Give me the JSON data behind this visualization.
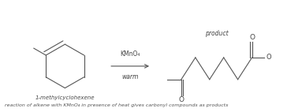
{
  "background_color": "#ffffff",
  "figure_width": 3.83,
  "figure_height": 1.42,
  "dpi": 100,
  "reactant_label": "1-methylcyclohexene",
  "reagent_line1": "KMnO₄",
  "reagent_line2": "warm",
  "product_label": "product",
  "footer_text": "reaction of alkene with KMnO₄ in presence of heat gives carbonyl compounds as products",
  "text_color": "#444444",
  "line_color": "#555555",
  "line_width": 0.8
}
